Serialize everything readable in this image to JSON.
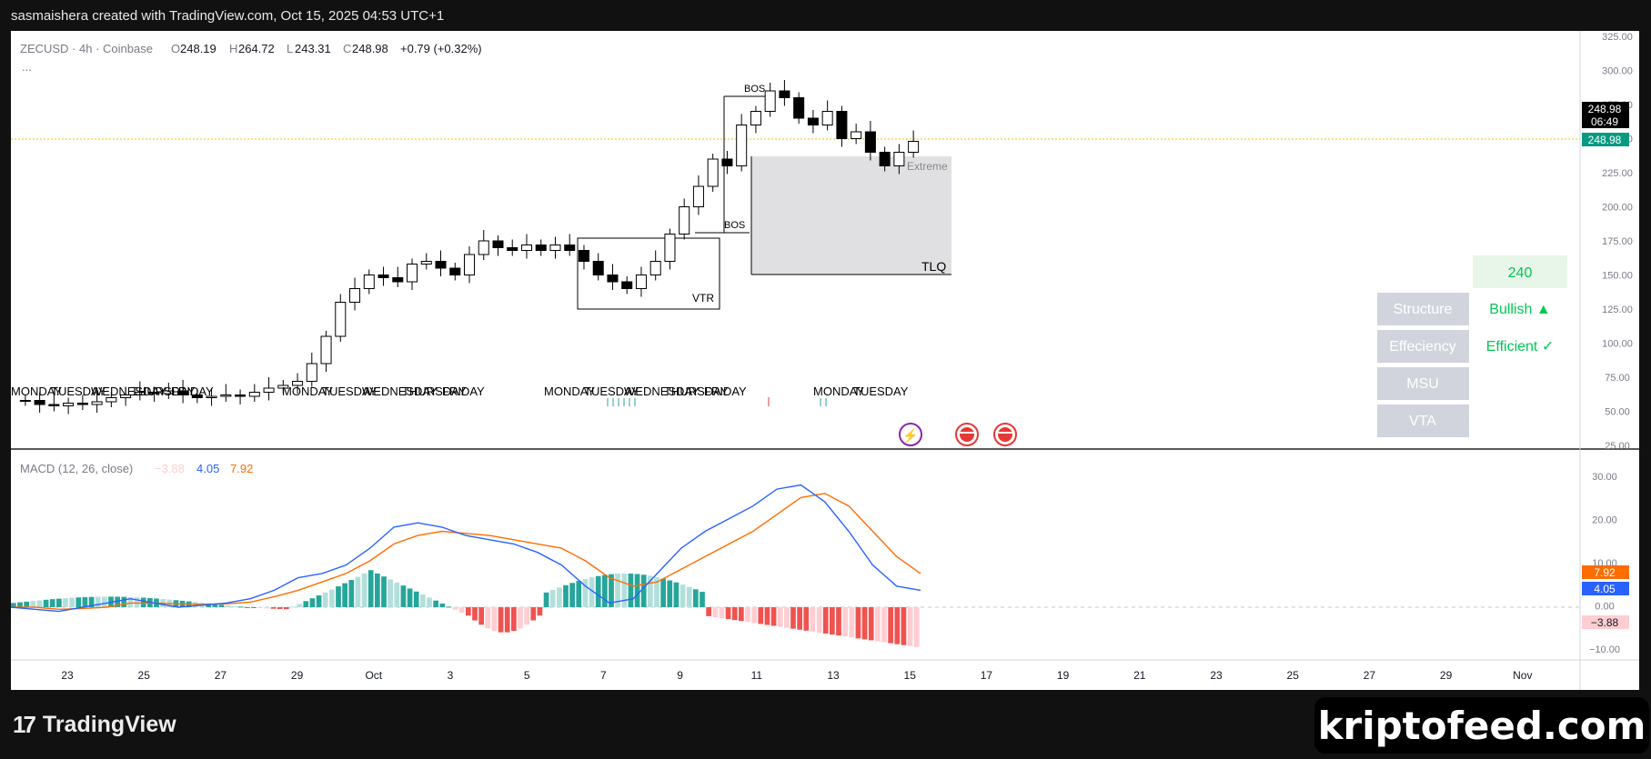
{
  "header": {
    "attribution": "sasmaishera created with TradingView.com, Oct 15, 2025 04:53 UTC+1"
  },
  "legend": {
    "symbol": "ZECUSD · 4h · Coinbase",
    "o_label": "O",
    "o_value": "248.19",
    "h_label": "H",
    "h_value": "264.72",
    "l_label": "L",
    "l_value": "243.31",
    "c_label": "C",
    "c_value": "248.98",
    "change": "+0.79 (+0.32%)",
    "more": "..."
  },
  "price_axis": {
    "ticks": [
      "325.00",
      "300.00",
      "275.00",
      "250.00",
      "225.00",
      "200.00",
      "175.00",
      "150.00",
      "125.00",
      "100.00",
      "75.00",
      "50.00",
      "25.00"
    ],
    "last_price": "248.98",
    "countdown": "06:49",
    "last_price_2": "248.98"
  },
  "macd": {
    "label": "MACD (12, 26, close)",
    "hist_value": "−3.88",
    "macd_value": "4.05",
    "signal_value": "7.92",
    "axis_ticks": [
      "30.00",
      "20.00",
      "10.00",
      "0.00",
      "−10.00"
    ],
    "tag_signal": "7.92",
    "tag_macd": "4.05",
    "tag_hist": "−3.88",
    "colors": {
      "macd": "#2962ff",
      "signal": "#ff6d00",
      "hist_up": "#26a69a",
      "hist_down": "#ef5350",
      "hist_up_light": "#b2dfdb",
      "hist_down_light": "#ffcdd2"
    }
  },
  "time_axis": {
    "ticks": [
      "23",
      "25",
      "27",
      "29",
      "Oct",
      "3",
      "5",
      "7",
      "9",
      "11",
      "13",
      "15",
      "17",
      "19",
      "21",
      "23",
      "25",
      "27",
      "29",
      "Nov"
    ]
  },
  "annotations": {
    "bos_upper": "BOS",
    "bos_lower": "BOS",
    "vtr": "VTR",
    "tlq": "TLQ",
    "extreme": "Extreme"
  },
  "day_labels": {
    "group1": [
      "MONDAY",
      "TUESDAY",
      "WEDNESDAY",
      "THURSDAY",
      "FRIDAY"
    ],
    "group2": [
      "MONDAY",
      "TUESDAY",
      "WEDNESDAY",
      "THURSDAY",
      "FRIDAY"
    ],
    "group3": [
      "MONDAY",
      "TUESDAY",
      "WEDNESDAY",
      "THURSDAY",
      "FRIDAY"
    ],
    "group4": [
      "MONDAY",
      "TUESDAY"
    ]
  },
  "status_table": {
    "value": "240",
    "rows": [
      {
        "label": "Structure",
        "value": "Bullish ▲"
      },
      {
        "label": "Effeciency",
        "value": "Efficient ✓"
      },
      {
        "label": "MSU",
        "value": ""
      },
      {
        "label": "VTA",
        "value": ""
      }
    ],
    "colors": {
      "label_bg": "#d1d4dc",
      "value_bg": "#e8f5e9",
      "value_text": "#00c853"
    }
  },
  "footer": {
    "logo_text": "TradingView",
    "brand": "kriptofeed.com"
  },
  "chart_data": {
    "type": "candlestick",
    "symbol": "ZECUSD",
    "interval": "4h",
    "exchange": "Coinbase",
    "ohlc_last": {
      "open": 248.19,
      "high": 264.72,
      "low": 243.31,
      "close": 248.98
    },
    "closes": [
      58,
      55,
      54,
      56,
      55,
      57,
      60,
      62,
      64,
      63,
      65,
      62,
      60,
      61,
      62,
      61,
      64,
      67,
      69,
      72,
      85,
      105,
      130,
      140,
      150,
      148,
      145,
      158,
      160,
      155,
      150,
      165,
      175,
      170,
      168,
      172,
      168,
      172,
      168,
      160,
      150,
      145,
      140,
      150,
      160,
      180,
      200,
      215,
      235,
      230,
      260,
      270,
      285,
      280,
      265,
      260,
      270,
      250,
      255,
      240,
      230,
      240,
      248
    ],
    "price_range": [
      25,
      325
    ],
    "macd": [
      0,
      -0.5,
      -1,
      0,
      1,
      2,
      1,
      0,
      0.5,
      1,
      2,
      4,
      7,
      8,
      10,
      14,
      19,
      20,
      19,
      17,
      16,
      15,
      13,
      10,
      5,
      1,
      2,
      8,
      14,
      18,
      21,
      24,
      28,
      29,
      25,
      18,
      10,
      5,
      4
    ],
    "signal": [
      0,
      0,
      -0.5,
      -0.3,
      0,
      1,
      1,
      0.8,
      0.7,
      0.8,
      1.2,
      2.5,
      4,
      6,
      8,
      11,
      15,
      17,
      18,
      17.5,
      17,
      16,
      15,
      14,
      11,
      7,
      5,
      6,
      9,
      12,
      15,
      18,
      22,
      26,
      27,
      24,
      18,
      12,
      8
    ],
    "macd_range": [
      -10,
      30
    ]
  }
}
